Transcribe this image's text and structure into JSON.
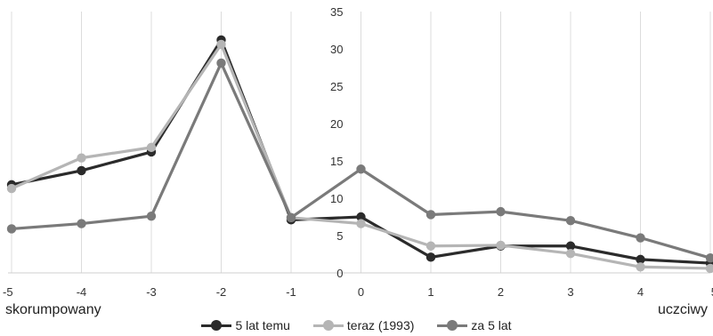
{
  "chart_data": {
    "type": "line",
    "title": "",
    "xlabel": "",
    "ylabel": "",
    "x": [
      -5,
      -4,
      -3,
      -2,
      -1,
      0,
      1,
      2,
      3,
      4,
      5
    ],
    "x_tick_labels": [
      "-5",
      "-4",
      "-3",
      "-2",
      "-1",
      "0",
      "1",
      "2",
      "3",
      "4",
      "5"
    ],
    "y_ticks": [
      0,
      5,
      10,
      15,
      20,
      25,
      30,
      35
    ],
    "ylim": [
      0,
      35
    ],
    "xlim": [
      -5,
      5
    ],
    "grid": "vertical",
    "legend_position": "bottom",
    "x_end_labels": {
      "left": "skorumpowany",
      "right": "uczciwy"
    },
    "series": [
      {
        "name": "5 lat temu",
        "color": "#2b2b2b",
        "values": [
          11.8,
          13.7,
          16.2,
          31.2,
          7.1,
          7.5,
          2.1,
          3.6,
          3.6,
          1.8,
          1.3
        ]
      },
      {
        "name": "teraz (1993)",
        "color": "#b5b5b5",
        "values": [
          11.3,
          15.4,
          16.8,
          30.6,
          7.4,
          6.6,
          3.6,
          3.7,
          2.6,
          0.8,
          0.6
        ]
      },
      {
        "name": "za 5 lat",
        "color": "#7a7a7a",
        "values": [
          5.9,
          6.6,
          7.6,
          28.1,
          7.4,
          13.9,
          7.8,
          8.2,
          7.0,
          4.7,
          2.0
        ]
      }
    ]
  }
}
